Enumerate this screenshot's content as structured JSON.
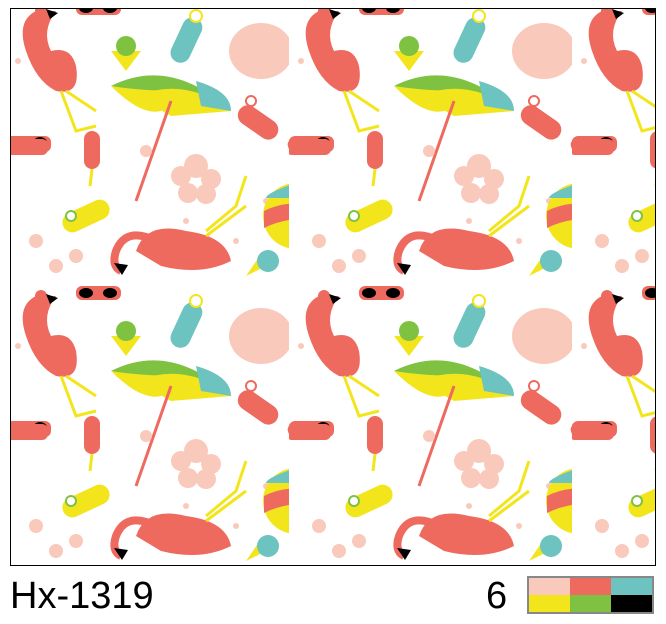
{
  "pattern_code": "Hx-1319",
  "color_count": "6",
  "colors": [
    "#f9c9bc",
    "#ee6a5f",
    "#6cc3bf",
    "#f3e51c",
    "#7fc242",
    "#000000"
  ],
  "motifs": [
    "flamingo",
    "beach-umbrella",
    "beach-ball",
    "sunglasses",
    "flip-flop",
    "ice-cream",
    "popsicle",
    "hibiscus",
    "monstera-leaf"
  ]
}
